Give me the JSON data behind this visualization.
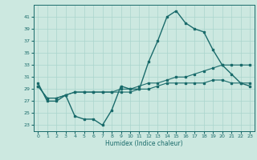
{
  "xlabel": "Humidex (Indice chaleur)",
  "bg_color": "#cce8e0",
  "grid_color": "#aad4cc",
  "line_color": "#1a6b6b",
  "ylim": [
    22,
    43
  ],
  "xlim": [
    -0.5,
    23.5
  ],
  "yticks": [
    23,
    25,
    27,
    29,
    31,
    33,
    35,
    37,
    39,
    41
  ],
  "xticks": [
    0,
    1,
    2,
    3,
    4,
    5,
    6,
    7,
    8,
    9,
    10,
    11,
    12,
    13,
    14,
    15,
    16,
    17,
    18,
    19,
    20,
    21,
    22,
    23
  ],
  "line1_x": [
    0,
    1,
    2,
    3,
    4,
    5,
    6,
    7,
    8,
    9,
    10,
    11,
    12,
    13,
    14,
    15,
    16,
    17,
    18,
    19,
    20,
    21,
    22,
    23
  ],
  "line1_y": [
    30,
    27,
    27,
    28,
    24.5,
    24,
    24,
    23,
    25.5,
    29.5,
    29,
    29,
    33.5,
    37,
    41,
    42,
    40,
    39,
    38.5,
    35.5,
    33,
    31.5,
    30,
    29.5
  ],
  "line2_x": [
    0,
    1,
    2,
    3,
    4,
    5,
    6,
    7,
    8,
    9,
    10,
    11,
    12,
    13,
    14,
    15,
    16,
    17,
    18,
    19,
    20,
    21,
    22,
    23
  ],
  "line2_y": [
    29.5,
    27.5,
    27.5,
    28,
    28.5,
    28.5,
    28.5,
    28.5,
    28.5,
    29,
    29,
    29.5,
    30,
    30,
    30.5,
    31,
    31,
    31.5,
    32,
    32.5,
    33,
    33,
    33,
    33
  ],
  "line3_x": [
    0,
    1,
    2,
    3,
    4,
    5,
    6,
    7,
    8,
    9,
    10,
    11,
    12,
    13,
    14,
    15,
    16,
    17,
    18,
    19,
    20,
    21,
    22,
    23
  ],
  "line3_y": [
    29.5,
    27.5,
    27.5,
    28,
    28.5,
    28.5,
    28.5,
    28.5,
    28.5,
    28.5,
    28.5,
    29,
    29,
    29.5,
    30,
    30,
    30,
    30,
    30,
    30.5,
    30.5,
    30,
    30,
    30
  ]
}
